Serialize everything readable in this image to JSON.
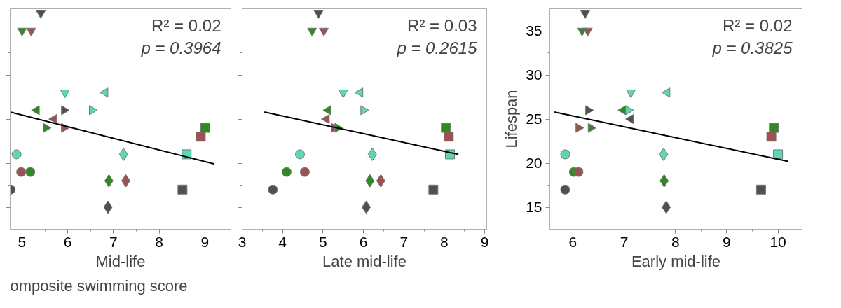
{
  "chart_data": [
    {
      "type": "scatter",
      "xlabel": "Mid-life",
      "xlim": [
        4.74,
        9.57
      ],
      "xticks": [
        5,
        6,
        7,
        8,
        9
      ],
      "ylim": [
        12.5,
        37.5
      ],
      "yticks": [
        15,
        20,
        25,
        30,
        35
      ],
      "tick_labels": "x",
      "annotations": [
        "R² = 0.02",
        "p = 0.3964",
        "omposite swimming score"
      ],
      "series": [
        {
          "marker": "circle",
          "x": [
            4.75,
            4.88,
            4.98,
            5.18
          ],
          "values": [
            17,
            21,
            19,
            19
          ],
          "colors": [
            "#505050",
            "#5ad8b8",
            "#9a5252",
            "#2e8b22"
          ]
        },
        {
          "marker": "triangle_down",
          "x": [
            5.41,
            5.0,
            5.2,
            5.94
          ],
          "values": [
            37,
            35,
            35,
            28
          ],
          "colors": [
            "#505050",
            "#2e8b22",
            "#9a5252",
            "#5ad8b8"
          ]
        },
        {
          "marker": "triangle_left",
          "x": [
            6.82,
            5.32,
            5.7
          ],
          "values": [
            28,
            26,
            25
          ],
          "colors": [
            "#5ad8b8",
            "#2e8b22",
            "#9a5252"
          ]
        },
        {
          "marker": "triangle_right",
          "x": [
            5.92,
            6.53,
            5.52,
            5.92
          ],
          "values": [
            26,
            26,
            24,
            24
          ],
          "colors": [
            "#505050",
            "#5ad8b8",
            "#2e8b22",
            "#9a5252"
          ]
        },
        {
          "marker": "diamond",
          "x": [
            7.22,
            6.9,
            7.27,
            6.88
          ],
          "values": [
            21,
            18,
            18,
            15
          ],
          "colors": [
            "#5ad8b8",
            "#2e8b22",
            "#9a5252",
            "#505050"
          ]
        },
        {
          "marker": "square",
          "x": [
            8.51,
            9.01,
            8.91,
            8.6
          ],
          "values": [
            17,
            24,
            23,
            21
          ],
          "colors": [
            "#505050",
            "#2e8b22",
            "#9a5252",
            "#5ad8b8"
          ]
        },
        {
          "type": "line",
          "color": "#000000",
          "x": [
            4.74,
            9.21
          ],
          "values": [
            25.8,
            19.9
          ]
        }
      ]
    },
    {
      "type": "scatter",
      "xlabel": "Late mid-life",
      "xlim": [
        3.0,
        9.05
      ],
      "xticks": [
        3,
        4,
        5,
        6,
        7,
        8,
        9
      ],
      "ylim": [
        12.5,
        37.5
      ],
      "yticks": [
        15,
        20,
        25,
        30,
        35
      ],
      "tick_labels": "x",
      "annotations": [
        "R² = 0.03",
        "p = 0.2615"
      ],
      "series": [
        {
          "marker": "circle",
          "x": [
            3.76,
            4.1,
            4.55,
            4.43
          ],
          "values": [
            17,
            19,
            19,
            21
          ],
          "colors": [
            "#505050",
            "#2e8b22",
            "#9a5252",
            "#5ad8b8"
          ]
        },
        {
          "marker": "triangle_down",
          "x": [
            4.89,
            4.73,
            5.02,
            5.5
          ],
          "values": [
            37,
            35,
            35,
            28
          ],
          "colors": [
            "#505050",
            "#2e8b22",
            "#9a5252",
            "#5ad8b8"
          ]
        },
        {
          "marker": "triangle_left",
          "x": [
            5.92,
            5.13,
            5.09
          ],
          "values": [
            28,
            26,
            25
          ],
          "colors": [
            "#5ad8b8",
            "#2e8b22",
            "#9a5252"
          ]
        },
        {
          "marker": "triangle_right",
          "x": [
            6.0,
            5.27,
            5.36
          ],
          "values": [
            26,
            24,
            24
          ],
          "colors": [
            "#5ad8b8",
            "#9a5252",
            "#2e8b22"
          ]
        },
        {
          "marker": "diamond",
          "x": [
            6.22,
            6.16,
            6.43,
            6.07
          ],
          "values": [
            21,
            18,
            18,
            15
          ],
          "colors": [
            "#5ad8b8",
            "#2e8b22",
            "#9a5252",
            "#505050"
          ]
        },
        {
          "marker": "square",
          "x": [
            7.73,
            8.04,
            8.11,
            8.14
          ],
          "values": [
            17,
            24,
            23,
            21
          ],
          "colors": [
            "#505050",
            "#2e8b22",
            "#9a5252",
            "#5ad8b8"
          ]
        },
        {
          "type": "line",
          "color": "#000000",
          "x": [
            3.55,
            8.35
          ],
          "values": [
            25.8,
            21.0
          ]
        }
      ]
    },
    {
      "type": "scatter",
      "xlabel": "Early mid-life",
      "ylabel": "Lifespan",
      "xlim": [
        5.55,
        10.47
      ],
      "xticks": [
        6,
        7,
        8,
        9,
        10
      ],
      "ylim": [
        12.5,
        37.5
      ],
      "yticks": [
        15,
        20,
        25,
        30,
        35
      ],
      "annotations": [
        "R² = 0.02",
        "p = 0.3825"
      ],
      "series": [
        {
          "marker": "circle",
          "x": [
            5.85,
            5.85,
            6.02,
            6.11
          ],
          "values": [
            17,
            21,
            19,
            19
          ],
          "colors": [
            "#505050",
            "#5ad8b8",
            "#2e8b22",
            "#9a5252"
          ]
        },
        {
          "marker": "triangle_down",
          "x": [
            6.24,
            6.18,
            6.29,
            7.13
          ],
          "values": [
            37,
            35,
            35,
            28
          ],
          "colors": [
            "#505050",
            "#2e8b22",
            "#9a5252",
            "#5ad8b8"
          ]
        },
        {
          "marker": "triangle_left",
          "x": [
            6.98,
            7.13,
            7.84
          ],
          "values": [
            26,
            25,
            28
          ],
          "colors": [
            "#2e8b22",
            "#505050",
            "#5ad8b8"
          ]
        },
        {
          "marker": "triangle_right",
          "x": [
            6.3,
            6.11,
            6.35,
            7.08
          ],
          "values": [
            26,
            24,
            24,
            26
          ],
          "colors": [
            "#505050",
            "#9a5252",
            "#2e8b22",
            "#5ad8b8"
          ]
        },
        {
          "marker": "diamond",
          "x": [
            7.77,
            7.78,
            7.82
          ],
          "values": [
            21,
            18,
            15
          ],
          "colors": [
            "#5ad8b8",
            "#2e8b22",
            "#505050"
          ]
        },
        {
          "marker": "square",
          "x": [
            9.67,
            9.92,
            9.87,
            10.0
          ],
          "values": [
            17,
            24,
            23,
            21
          ],
          "colors": [
            "#505050",
            "#2e8b22",
            "#9a5252",
            "#5ad8b8"
          ]
        },
        {
          "type": "line",
          "color": "#000000",
          "x": [
            5.64,
            10.2
          ],
          "values": [
            25.8,
            20.2
          ]
        }
      ]
    }
  ]
}
